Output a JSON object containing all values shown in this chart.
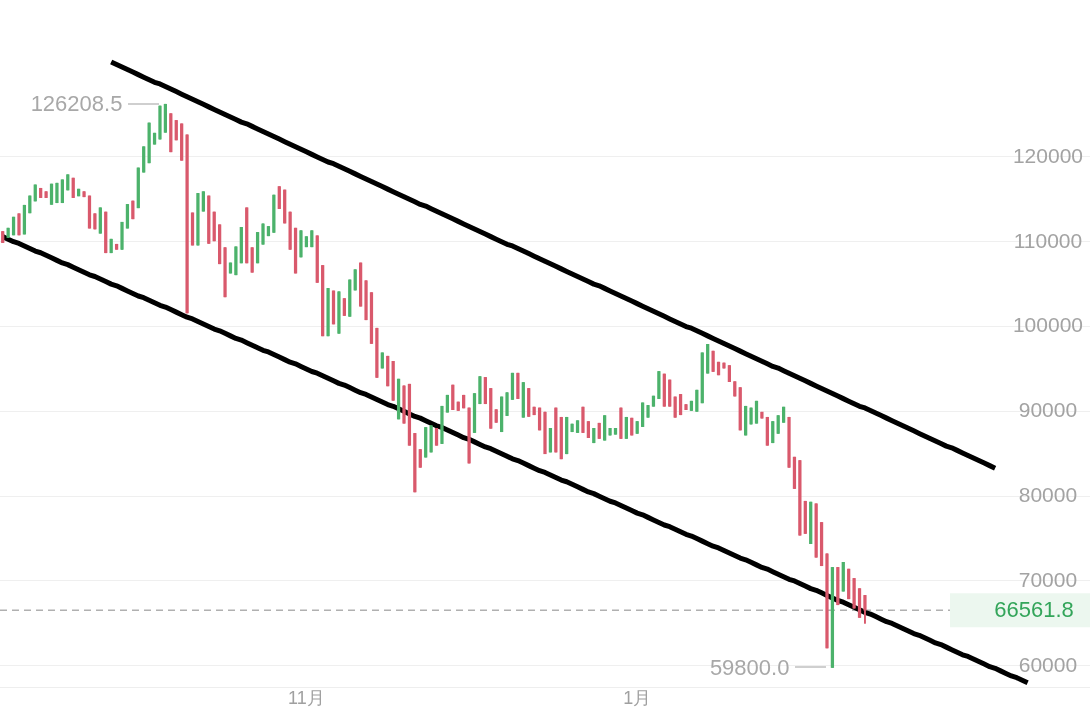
{
  "chart_data": {
    "type": "candlestick",
    "grid": "y",
    "categories": [
      null,
      null,
      null,
      null,
      null,
      null,
      null,
      null,
      null,
      null,
      null,
      null,
      null,
      null,
      null,
      null,
      null,
      null,
      null,
      null,
      null,
      null,
      null,
      null,
      null,
      null,
      null,
      null,
      null,
      null,
      null,
      null,
      null,
      null,
      null,
      null,
      null,
      null,
      null,
      null,
      null,
      null,
      null,
      null,
      null,
      null,
      null,
      null,
      null,
      null,
      null,
      null,
      null,
      null,
      null,
      null,
      "11月",
      null,
      null,
      null,
      null,
      null,
      null,
      null,
      null,
      null,
      null,
      null,
      null,
      null,
      null,
      null,
      null,
      null,
      null,
      null,
      null,
      null,
      null,
      null,
      null,
      null,
      null,
      null,
      null,
      null,
      null,
      null,
      null,
      null,
      null,
      null,
      null,
      null,
      null,
      null,
      null,
      null,
      null,
      null,
      null,
      null,
      null,
      null,
      null,
      null,
      null,
      null,
      null,
      null,
      null,
      null,
      null,
      null,
      null,
      null,
      null,
      "1月",
      null,
      null,
      null,
      null,
      null,
      null,
      null,
      null,
      null,
      null,
      null,
      null,
      null,
      null,
      null,
      null,
      null,
      null,
      null,
      null,
      null,
      null,
      null,
      null,
      null,
      null,
      null,
      null,
      null,
      null,
      null,
      null,
      null,
      null,
      null,
      null,
      null,
      null,
      null,
      null,
      null,
      null,
      null,
      null,
      null,
      null,
      null,
      null,
      null,
      null,
      null,
      null,
      null,
      null,
      null,
      null,
      null,
      null,
      null,
      null,
      null,
      null,
      null,
      null,
      null,
      null,
      null,
      null,
      null,
      null,
      null,
      null,
      null,
      null,
      null,
      null,
      null,
      null,
      null,
      null,
      null,
      null,
      null
    ],
    "ylim": [
      57500,
      138500
    ],
    "yticks": [
      60000,
      70000,
      80000,
      90000,
      100000,
      110000,
      120000
    ],
    "series": [
      {
        "ohlc": [
          [
            111200,
            111200,
            109900,
            109900
          ],
          [
            110500,
            111600,
            110500,
            111600
          ],
          [
            110800,
            112900,
            110800,
            112900
          ],
          [
            113300,
            113300,
            110800,
            110800
          ],
          [
            110900,
            114300,
            110900,
            114300
          ],
          [
            113400,
            115400,
            113400,
            115400
          ],
          [
            114800,
            116700,
            114800,
            116700
          ],
          [
            116300,
            116300,
            115200,
            115200
          ],
          [
            115900,
            115900,
            115200,
            115200
          ],
          [
            114400,
            116800,
            114400,
            116800
          ],
          [
            114600,
            116900,
            114600,
            116900
          ],
          [
            114600,
            117300,
            114600,
            117300
          ],
          [
            116100,
            117900,
            116100,
            117900
          ],
          [
            117500,
            117500,
            115200,
            115200
          ],
          [
            115400,
            116200,
            115400,
            116200
          ],
          [
            115900,
            115900,
            115300,
            115300
          ],
          [
            115400,
            115400,
            111600,
            111600
          ],
          [
            113300,
            113300,
            111500,
            111500
          ],
          [
            111000,
            114000,
            111000,
            114000
          ],
          [
            113500,
            113500,
            108700,
            108700
          ],
          [
            108700,
            110300,
            108700,
            110300
          ],
          [
            109700,
            109700,
            109100,
            109100
          ],
          [
            109100,
            112300,
            109100,
            112300
          ],
          [
            111600,
            114400,
            111600,
            114400
          ],
          [
            114800,
            114800,
            112700,
            112700
          ],
          [
            114000,
            118700,
            114000,
            118700
          ],
          [
            118200,
            121200,
            118200,
            121200
          ],
          [
            119300,
            124000,
            119300,
            124000
          ],
          [
            121500,
            122800,
            121500,
            122800
          ],
          [
            122100,
            126000,
            122100,
            126000
          ],
          [
            122900,
            126208.5,
            122900,
            126208.5
          ],
          [
            125100,
            125100,
            120600,
            120600
          ],
          [
            124300,
            124300,
            122000,
            122000
          ],
          [
            123900,
            123900,
            119600,
            119600
          ],
          [
            122600,
            122600,
            101600,
            101600
          ],
          [
            113400,
            113400,
            109600,
            109600
          ],
          [
            109600,
            115700,
            109600,
            115700
          ],
          [
            113600,
            115900,
            113600,
            115900
          ],
          [
            115400,
            115400,
            109800,
            109800
          ],
          [
            113500,
            113500,
            110100,
            110100
          ],
          [
            112000,
            112000,
            107400,
            107400
          ],
          [
            109300,
            109300,
            103500,
            103500
          ],
          [
            106300,
            107500,
            106300,
            107500
          ],
          [
            106100,
            109400,
            106100,
            109400
          ],
          [
            107500,
            111700,
            107500,
            111700
          ],
          [
            114000,
            114000,
            107500,
            107500
          ],
          [
            109300,
            109300,
            106400,
            106400
          ],
          [
            107500,
            111100,
            107500,
            111100
          ],
          [
            109700,
            112100,
            109700,
            112100
          ],
          [
            110700,
            111800,
            110700,
            111800
          ],
          [
            111100,
            115500,
            111100,
            115500
          ],
          [
            116500,
            116500,
            113900,
            113900
          ],
          [
            116100,
            116100,
            112200,
            112200
          ],
          [
            113500,
            113500,
            109100,
            109100
          ],
          [
            111600,
            111600,
            106300,
            106300
          ],
          [
            108200,
            111300,
            108200,
            111300
          ],
          [
            109400,
            110600,
            109400,
            110600
          ],
          [
            109400,
            111300,
            109400,
            111300
          ],
          [
            110700,
            110700,
            105200,
            105200
          ],
          [
            107200,
            107200,
            98900,
            98900
          ],
          [
            98900,
            104500,
            98900,
            104500
          ],
          [
            104200,
            104200,
            100300,
            100300
          ],
          [
            99200,
            104100,
            99200,
            104100
          ],
          [
            103300,
            103300,
            101300,
            101300
          ],
          [
            101200,
            105500,
            101200,
            105500
          ],
          [
            104300,
            106700,
            104300,
            106700
          ],
          [
            107500,
            107500,
            102400,
            102400
          ],
          [
            105400,
            105400,
            100800,
            100800
          ],
          [
            104000,
            104000,
            98000,
            98000
          ],
          [
            99800,
            99800,
            94000,
            94000
          ],
          [
            95100,
            96900,
            95100,
            96900
          ],
          [
            96500,
            96500,
            93000,
            93000
          ],
          [
            95900,
            95900,
            91300,
            91300
          ],
          [
            89100,
            93800,
            89100,
            93800
          ],
          [
            93000,
            93000,
            88600,
            88600
          ],
          [
            93200,
            93200,
            86000,
            86000
          ],
          [
            87400,
            87400,
            80500,
            80500
          ],
          [
            85500,
            85500,
            83400,
            83400
          ],
          [
            84600,
            88100,
            84600,
            88100
          ],
          [
            85200,
            88300,
            85200,
            88300
          ],
          [
            88000,
            88000,
            86000,
            86000
          ],
          [
            86200,
            90600,
            86200,
            90600
          ],
          [
            89900,
            91900,
            89900,
            91900
          ],
          [
            93100,
            93100,
            90200,
            90200
          ],
          [
            91100,
            91100,
            90100,
            90100
          ],
          [
            91900,
            91900,
            90400,
            90400
          ],
          [
            90400,
            90400,
            83900,
            83900
          ],
          [
            87500,
            92100,
            87500,
            92100
          ],
          [
            90900,
            94100,
            90900,
            94100
          ],
          [
            94000,
            94000,
            90900,
            90900
          ],
          [
            92700,
            92700,
            88000,
            88000
          ],
          [
            90200,
            90200,
            88700,
            88700
          ],
          [
            87600,
            91700,
            87600,
            91700
          ],
          [
            89500,
            92200,
            89500,
            92200
          ],
          [
            91400,
            94500,
            91400,
            94500
          ],
          [
            94500,
            94500,
            91500,
            91500
          ],
          [
            89300,
            93400,
            89300,
            93400
          ],
          [
            92700,
            92700,
            89400,
            89400
          ],
          [
            90500,
            90500,
            89600,
            89600
          ],
          [
            90400,
            90400,
            87800,
            87800
          ],
          [
            89900,
            89900,
            85000,
            85000
          ],
          [
            85200,
            88000,
            85200,
            88000
          ],
          [
            90400,
            90400,
            85200,
            85200
          ],
          [
            89300,
            89300,
            84400,
            84400
          ],
          [
            85000,
            89300,
            85000,
            89300
          ],
          [
            87600,
            88500,
            87600,
            88500
          ],
          [
            87500,
            88900,
            87500,
            88900
          ],
          [
            90500,
            90500,
            87500,
            87500
          ],
          [
            88800,
            88800,
            86900,
            86900
          ],
          [
            86300,
            88000,
            86300,
            88000
          ],
          [
            88600,
            88600,
            86800,
            86800
          ],
          [
            86600,
            89500,
            86600,
            89500
          ],
          [
            87200,
            88000,
            87200,
            88000
          ],
          [
            87300,
            88000,
            87300,
            88000
          ],
          [
            90400,
            90400,
            86800,
            86800
          ],
          [
            86800,
            89300,
            86800,
            89300
          ],
          [
            89200,
            89200,
            87200,
            87200
          ],
          [
            87400,
            88800,
            87400,
            88800
          ],
          [
            88200,
            91000,
            88200,
            91000
          ],
          [
            89300,
            90700,
            89300,
            90700
          ],
          [
            90600,
            91800,
            90600,
            91800
          ],
          [
            91500,
            94700,
            91500,
            94700
          ],
          [
            94400,
            94400,
            90600,
            90600
          ],
          [
            93700,
            93700,
            90600,
            90600
          ],
          [
            91700,
            91700,
            89300,
            89300
          ],
          [
            92000,
            92000,
            89600,
            89600
          ],
          [
            90800,
            90800,
            90200,
            90200
          ],
          [
            90100,
            91200,
            90100,
            91200
          ],
          [
            90000,
            92500,
            90000,
            92500
          ],
          [
            91000,
            96900,
            91000,
            96900
          ],
          [
            94500,
            97900,
            94500,
            97900
          ],
          [
            97100,
            97100,
            94700,
            94700
          ],
          [
            95800,
            95800,
            94300,
            94300
          ],
          [
            95700,
            95700,
            95100,
            95100
          ],
          [
            95400,
            95400,
            93500,
            93500
          ],
          [
            93500,
            93500,
            91800,
            91800
          ],
          [
            92800,
            92800,
            87800,
            87800
          ],
          [
            87200,
            90600,
            87200,
            90600
          ],
          [
            88500,
            90400,
            88500,
            90400
          ],
          [
            88600,
            91200,
            88600,
            91200
          ],
          [
            89900,
            89900,
            89200,
            89200
          ],
          [
            89300,
            89300,
            86000,
            86000
          ],
          [
            86300,
            88800,
            86300,
            88800
          ],
          [
            87400,
            89500,
            87400,
            89500
          ],
          [
            88700,
            90500,
            88700,
            90500
          ],
          [
            89300,
            89300,
            83400,
            83400
          ],
          [
            84600,
            84600,
            80900,
            80900
          ],
          [
            84200,
            84200,
            75400,
            75400
          ],
          [
            79400,
            79400,
            75600,
            75600
          ],
          [
            74400,
            79300,
            74400,
            79300
          ],
          [
            79100,
            79100,
            72800,
            72800
          ],
          [
            76900,
            76900,
            71800,
            71800
          ],
          [
            73200,
            73200,
            62100,
            62100
          ],
          [
            59800,
            71600,
            59800,
            71600
          ],
          [
            71600,
            71600,
            67200,
            67200
          ],
          [
            68800,
            72200,
            68800,
            72200
          ],
          [
            71400,
            71400,
            67900,
            67900
          ],
          [
            70300,
            70300,
            66800,
            66800
          ],
          [
            69100,
            69100,
            65700,
            65700
          ],
          [
            68300,
            68300,
            65000,
            66561.8
          ],
          null,
          null,
          null,
          null,
          null,
          null,
          null,
          null,
          null,
          null,
          null,
          null,
          null,
          null,
          null,
          null,
          null,
          null,
          null,
          null,
          null,
          null,
          null,
          null,
          null,
          null,
          null,
          null,
          null,
          null,
          null,
          null,
          null,
          null,
          null,
          null,
          null,
          null,
          null,
          null,
          null
        ],
        "colors": [
          "#d9596c",
          "#4cb26b",
          "#4cb26b",
          "#d9596c",
          "#4cb26b",
          "#4cb26b",
          "#4cb26b",
          "#d9596c",
          "#d9596c",
          "#4cb26b",
          "#4cb26b",
          "#4cb26b",
          "#4cb26b",
          "#d9596c",
          "#4cb26b",
          "#d9596c",
          "#d9596c",
          "#d9596c",
          "#4cb26b",
          "#d9596c",
          "#4cb26b",
          "#d9596c",
          "#4cb26b",
          "#4cb26b",
          "#d9596c",
          "#4cb26b",
          "#4cb26b",
          "#4cb26b",
          "#4cb26b",
          "#4cb26b",
          "#4cb26b",
          "#d9596c",
          "#d9596c",
          "#d9596c",
          "#d9596c",
          "#d9596c",
          "#4cb26b",
          "#4cb26b",
          "#d9596c",
          "#d9596c",
          "#d9596c",
          "#d9596c",
          "#4cb26b",
          "#4cb26b",
          "#4cb26b",
          "#d9596c",
          "#d9596c",
          "#4cb26b",
          "#4cb26b",
          "#4cb26b",
          "#4cb26b",
          "#d9596c",
          "#d9596c",
          "#d9596c",
          "#d9596c",
          "#4cb26b",
          "#4cb26b",
          "#4cb26b",
          "#d9596c",
          "#d9596c",
          "#4cb26b",
          "#d9596c",
          "#4cb26b",
          "#d9596c",
          "#4cb26b",
          "#4cb26b",
          "#d9596c",
          "#d9596c",
          "#d9596c",
          "#d9596c",
          "#4cb26b",
          "#d9596c",
          "#d9596c",
          "#4cb26b",
          "#d9596c",
          "#d9596c",
          "#d9596c",
          "#d9596c",
          "#4cb26b",
          "#4cb26b",
          "#d9596c",
          "#4cb26b",
          "#4cb26b",
          "#d9596c",
          "#d9596c",
          "#d9596c",
          "#d9596c",
          "#4cb26b",
          "#4cb26b",
          "#d9596c",
          "#d9596c",
          "#d9596c",
          "#4cb26b",
          "#4cb26b",
          "#4cb26b",
          "#d9596c",
          "#4cb26b",
          "#d9596c",
          "#d9596c",
          "#d9596c",
          "#d9596c",
          "#4cb26b",
          "#d9596c",
          "#d9596c",
          "#4cb26b",
          "#4cb26b",
          "#4cb26b",
          "#d9596c",
          "#d9596c",
          "#4cb26b",
          "#d9596c",
          "#4cb26b",
          "#4cb26b",
          "#4cb26b",
          "#d9596c",
          "#4cb26b",
          "#d9596c",
          "#4cb26b",
          "#4cb26b",
          "#4cb26b",
          "#4cb26b",
          "#4cb26b",
          "#d9596c",
          "#d9596c",
          "#d9596c",
          "#d9596c",
          "#d9596c",
          "#4cb26b",
          "#4cb26b",
          "#4cb26b",
          "#4cb26b",
          "#d9596c",
          "#d9596c",
          "#d9596c",
          "#d9596c",
          "#d9596c",
          "#d9596c",
          "#4cb26b",
          "#4cb26b",
          "#4cb26b",
          "#d9596c",
          "#d9596c",
          "#4cb26b",
          "#4cb26b",
          "#4cb26b",
          "#d9596c",
          "#d9596c",
          "#d9596c",
          "#d9596c",
          "#4cb26b",
          "#d9596c",
          "#d9596c",
          "#d9596c",
          "#4cb26b",
          "#d9596c",
          "#4cb26b",
          "#d9596c",
          "#d9596c",
          "#d9596c",
          "#d9596c",
          null,
          null,
          null,
          null,
          null,
          null,
          null,
          null,
          null,
          null,
          null,
          null,
          null,
          null,
          null,
          null,
          null,
          null,
          null,
          null,
          null,
          null,
          null,
          null,
          null,
          null,
          null,
          null,
          null,
          null,
          null,
          null,
          null,
          null,
          null,
          null,
          null,
          null,
          null,
          null,
          null
        ]
      },
      {
        "type": "line",
        "color": "#000000",
        "values": [
          null,
          null,
          null,
          null,
          null,
          null,
          null,
          null,
          null,
          null,
          null,
          null,
          null,
          null,
          null,
          null,
          null,
          null,
          null,
          null,
          131200,
          130900,
          130600,
          130300,
          130000,
          129700,
          129400,
          129100,
          128800,
          128600,
          128300,
          128000,
          127700,
          127400,
          127100,
          126800,
          126500,
          126200,
          125900,
          125600,
          125300,
          125000,
          124700,
          124400,
          124100,
          123900,
          123600,
          123300,
          123000,
          122700,
          122400,
          122100,
          121800,
          121500,
          121200,
          120900,
          120600,
          120300,
          120000,
          119700,
          119400,
          119200,
          118900,
          118600,
          118300,
          118000,
          117700,
          117400,
          117100,
          116800,
          116500,
          116200,
          115900,
          115600,
          115300,
          115000,
          114700,
          114400,
          114200,
          113900,
          113600,
          113300,
          113000,
          112700,
          112400,
          112100,
          111800,
          111500,
          111200,
          110900,
          110600,
          110300,
          110000,
          109700,
          109500,
          109200,
          108900,
          108600,
          108300,
          108000,
          107700,
          107400,
          107100,
          106800,
          106500,
          106200,
          105900,
          105600,
          105300,
          105000,
          104800,
          104500,
          104200,
          103900,
          103600,
          103300,
          103000,
          102700,
          102400,
          102100,
          101800,
          101500,
          101200,
          100900,
          100600,
          100300,
          100000,
          99800,
          99500,
          99200,
          98900,
          98600,
          98300,
          98000,
          97700,
          97400,
          97100,
          96800,
          96500,
          96200,
          95900,
          95600,
          95300,
          95100,
          94800,
          94500,
          94200,
          93900,
          93600,
          93300,
          93000,
          92700,
          92400,
          92100,
          91800,
          91500,
          91200,
          90900,
          90600,
          90400,
          90100,
          89800,
          89500,
          89200,
          88900,
          88600,
          88300,
          88000,
          87700,
          87400,
          87100,
          86800,
          86500,
          86200,
          85900,
          85700,
          85400,
          85100,
          84800,
          84500,
          84200,
          83900,
          83600,
          83300,
          null,
          null,
          null,
          null,
          null,
          null,
          null,
          null,
          null,
          null,
          null,
          null,
          null,
          null,
          null,
          null,
          null
        ]
      },
      {
        "type": "line",
        "color": "#000000",
        "values": [
          110600,
          110300,
          110000,
          109800,
          109500,
          109200,
          108900,
          108700,
          108400,
          108100,
          107800,
          107500,
          107300,
          107000,
          106700,
          106400,
          106100,
          105900,
          105600,
          105300,
          105000,
          104800,
          104500,
          104200,
          103900,
          103600,
          103400,
          103100,
          102800,
          102500,
          102300,
          102000,
          101700,
          101400,
          101100,
          100900,
          100600,
          100300,
          100000,
          99700,
          99500,
          99200,
          98900,
          98600,
          98400,
          98100,
          97800,
          97500,
          97200,
          97000,
          96700,
          96400,
          96100,
          95800,
          95600,
          95300,
          95000,
          94700,
          94500,
          94200,
          93900,
          93600,
          93300,
          93100,
          92800,
          92500,
          92200,
          92000,
          91700,
          91400,
          91100,
          90800,
          90600,
          90300,
          90000,
          89700,
          89400,
          89200,
          88900,
          88600,
          88300,
          88100,
          87800,
          87500,
          87200,
          86900,
          86700,
          86400,
          86100,
          85800,
          85600,
          85300,
          85000,
          84700,
          84400,
          84200,
          83900,
          83600,
          83300,
          83000,
          82800,
          82500,
          82200,
          81900,
          81700,
          81400,
          81100,
          80800,
          80500,
          80300,
          80000,
          79700,
          79400,
          79200,
          78900,
          78600,
          78300,
          78000,
          77800,
          77500,
          77200,
          76900,
          76600,
          76400,
          76100,
          75800,
          75500,
          75300,
          75000,
          74700,
          74400,
          74100,
          73900,
          73600,
          73300,
          73000,
          72700,
          72500,
          72200,
          71900,
          71600,
          71400,
          71100,
          70800,
          70500,
          70200,
          70000,
          69700,
          69400,
          69100,
          68900,
          68600,
          68300,
          68000,
          67700,
          67500,
          67200,
          66900,
          66600,
          66300,
          66100,
          65800,
          65500,
          65200,
          65000,
          64700,
          64400,
          64100,
          63800,
          63600,
          63300,
          63000,
          62700,
          62500,
          62200,
          61900,
          61600,
          61300,
          61100,
          60800,
          60500,
          60200,
          59900,
          59700,
          59400,
          59100,
          58800,
          58600,
          58300,
          58000,
          null,
          null,
          null,
          null,
          null,
          null,
          null,
          null,
          null,
          null,
          null
        ]
      }
    ],
    "ref_lines": [
      {
        "axis": "y",
        "value": 66561.8,
        "label": "66561.8",
        "color": "#b0b0b0",
        "line_style": "dashed"
      }
    ],
    "annotations": [
      "126208.5",
      "59800.0"
    ]
  }
}
